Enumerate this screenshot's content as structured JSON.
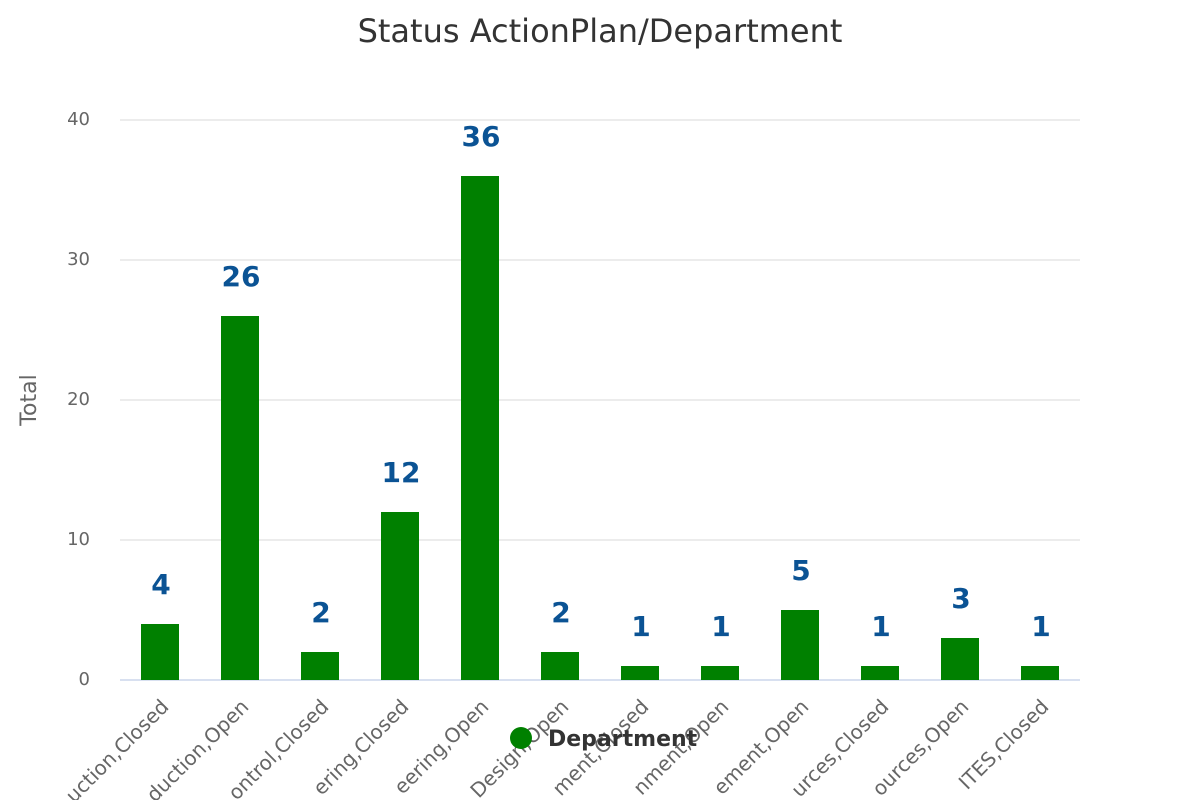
{
  "chart_data": {
    "type": "bar",
    "title": "Status ActionPlan/Department",
    "y_label": "Total",
    "categories": [
      "uction,Closed",
      "duction,Open",
      "ontrol,Closed",
      "ering,Closed",
      "eering,Open",
      "Design,Open",
      "ment,Closed",
      "nment,Open",
      "ement,Open",
      "urces,Closed",
      "ources,Open",
      "ITES,Closed"
    ],
    "series": [
      {
        "name": "Department",
        "color": "#008000",
        "values": [
          4,
          26,
          2,
          12,
          36,
          2,
          1,
          1,
          5,
          1,
          3,
          1
        ]
      }
    ],
    "ylim": [
      0,
      40
    ],
    "yticks": [
      0,
      10,
      20,
      30,
      40
    ],
    "grid": true,
    "value_label_color": "#0b5394"
  }
}
